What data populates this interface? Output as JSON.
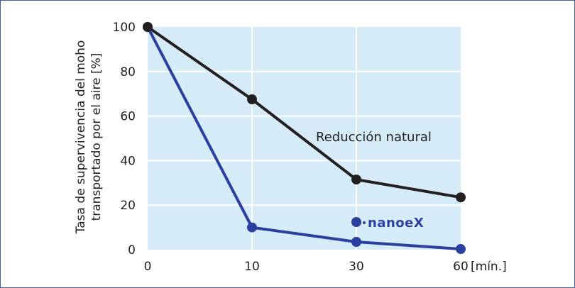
{
  "chart_data": {
    "type": "line",
    "categories": [
      "0",
      "10",
      "30",
      "60"
    ],
    "x_unit_label": "[mín.]",
    "ylabel_lines": [
      "Tasa de supervivencia del moho",
      "transportado por el aire [%]"
    ],
    "ylim": [
      0,
      100
    ],
    "yticks": [
      0,
      20,
      40,
      60,
      80,
      100
    ],
    "grid": true,
    "plot_background": "#d5ebf8",
    "series": [
      {
        "name": "Reducción natural",
        "color": "#231f20",
        "values": [
          100,
          67.5,
          31.5,
          23.5
        ]
      },
      {
        "name": "nanoeX",
        "color": "#2b3f9e",
        "values": [
          100,
          10,
          3.5,
          0.3
        ]
      }
    ]
  },
  "logo_text": "nanoeX"
}
